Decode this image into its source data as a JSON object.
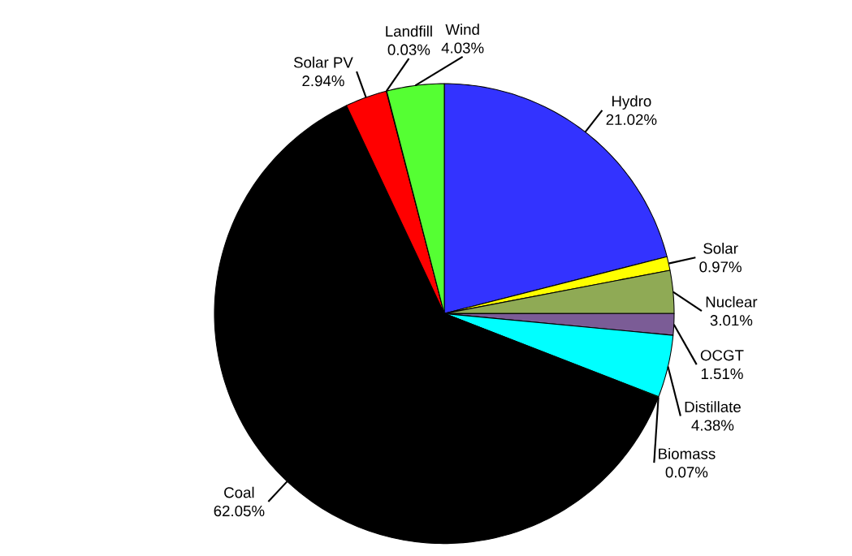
{
  "chart_data": {
    "type": "pie",
    "categories": [
      "Hydro",
      "Solar",
      "Nuclear",
      "OCGT",
      "Distillate",
      "Biomass",
      "Coal",
      "Solar PV",
      "Landfill",
      "Wind"
    ],
    "values": [
      21.02,
      0.97,
      3.01,
      1.51,
      4.38,
      0.07,
      62.05,
      2.94,
      0.03,
      4.03
    ],
    "value_labels": [
      "21.02%",
      "0.97%",
      "3.01%",
      "1.51%",
      "4.38%",
      "0.07%",
      "62.05%",
      "2.94%",
      "0.03%",
      "4.03%"
    ],
    "colors": [
      "#3333ff",
      "#ffff00",
      "#8faa55",
      "#7b5c96",
      "#00ffff",
      "#00ff00",
      "#000000",
      "#ff0000",
      "#a0a0a0",
      "#55ff33"
    ]
  }
}
